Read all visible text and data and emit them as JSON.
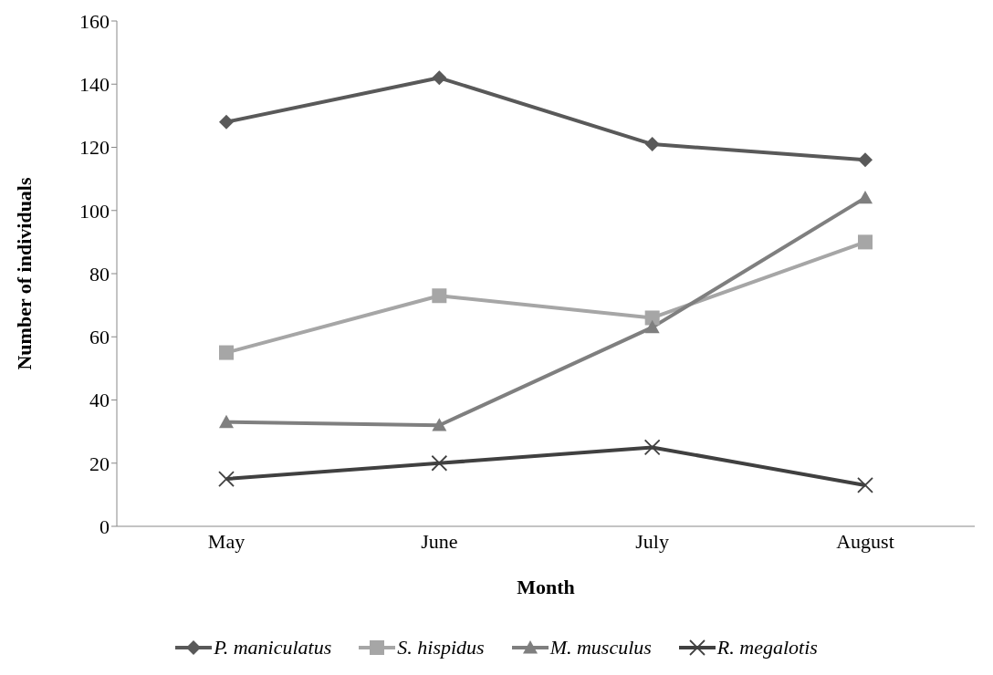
{
  "chart_data": {
    "type": "line",
    "xlabel": "Month",
    "ylabel": "Number of individuals",
    "categories": [
      "May",
      "June",
      "July",
      "August"
    ],
    "series": [
      {
        "name": "P. maniculatus",
        "color": "#595959",
        "marker": "diamond",
        "values": [
          128,
          142,
          121,
          116
        ]
      },
      {
        "name": "S. hispidus",
        "color": "#a6a6a6",
        "marker": "square",
        "values": [
          55,
          73,
          66,
          90
        ]
      },
      {
        "name": "M. musculus",
        "color": "#7f7f7f",
        "marker": "triangle",
        "values": [
          33,
          32,
          63,
          104
        ]
      },
      {
        "name": "R. megalotis",
        "color": "#404040",
        "marker": "cross",
        "values": [
          15,
          20,
          25,
          13
        ]
      }
    ],
    "ylim": [
      0,
      160
    ],
    "yticks": [
      0,
      20,
      40,
      60,
      80,
      100,
      120,
      140,
      160
    ],
    "grid": false,
    "legend": "bottom",
    "line_style": "solid"
  }
}
